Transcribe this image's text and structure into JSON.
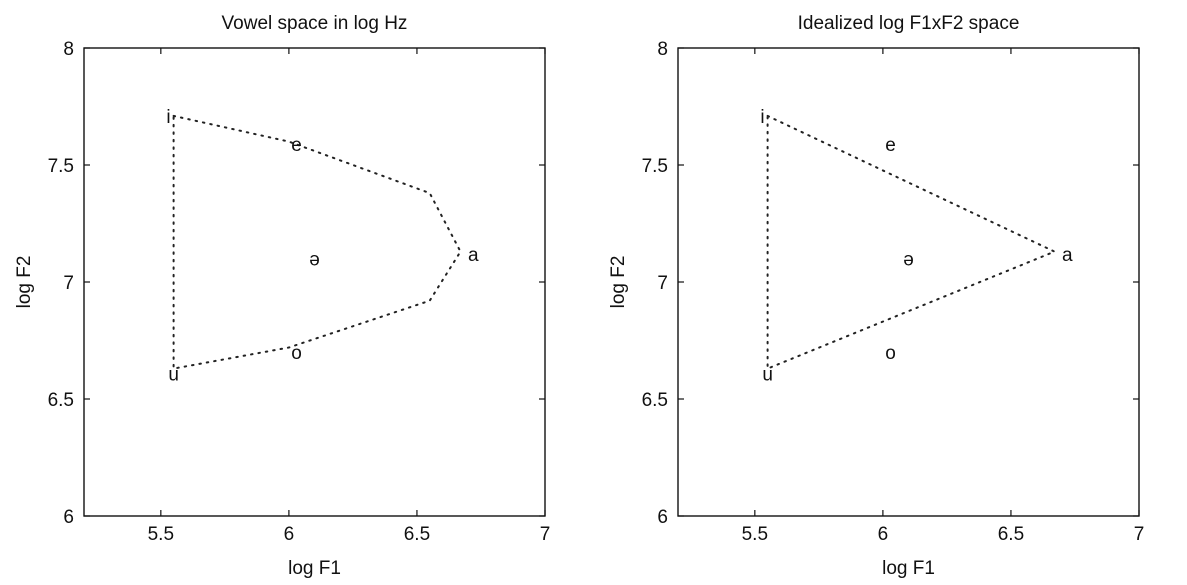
{
  "chart_data": [
    {
      "type": "scatter",
      "title": "Vowel space in log Hz",
      "xlabel": "log F1",
      "ylabel": "log F2",
      "xlim": [
        5.2,
        7
      ],
      "ylim": [
        6,
        8
      ],
      "xticks": [
        "5.5",
        "6",
        "6.5",
        "7"
      ],
      "yticks": [
        "6",
        "6.5",
        "7",
        "7.5",
        "8"
      ],
      "grid": false,
      "points": [
        {
          "label": "i",
          "x": 5.53,
          "y": 7.71
        },
        {
          "label": "e",
          "x": 6.03,
          "y": 7.59
        },
        {
          "label": "ə",
          "x": 6.1,
          "y": 7.1
        },
        {
          "label": "a",
          "x": 6.72,
          "y": 7.12
        },
        {
          "label": "o",
          "x": 6.03,
          "y": 6.7
        },
        {
          "label": "u",
          "x": 5.55,
          "y": 6.61
        }
      ],
      "boundary": {
        "style": "dotted",
        "path": [
          {
            "x": 5.55,
            "y": 7.71
          },
          {
            "x": 6.0,
            "y": 7.6
          },
          {
            "x": 6.55,
            "y": 7.38
          },
          {
            "x": 6.67,
            "y": 7.13
          },
          {
            "x": 6.55,
            "y": 6.92
          },
          {
            "x": 6.0,
            "y": 6.72
          },
          {
            "x": 5.55,
            "y": 6.63
          },
          {
            "x": 5.55,
            "y": 7.71
          }
        ]
      }
    },
    {
      "type": "scatter",
      "title": "Idealized log F1xF2 space",
      "xlabel": "log F1",
      "ylabel": "log F2",
      "xlim": [
        5.2,
        7
      ],
      "ylim": [
        6,
        8
      ],
      "xticks": [
        "5.5",
        "6",
        "6.5",
        "7"
      ],
      "yticks": [
        "6",
        "6.5",
        "7",
        "7.5",
        "8"
      ],
      "grid": false,
      "points": [
        {
          "label": "i",
          "x": 5.53,
          "y": 7.71
        },
        {
          "label": "e",
          "x": 6.03,
          "y": 7.59
        },
        {
          "label": "ə",
          "x": 6.1,
          "y": 7.1
        },
        {
          "label": "a",
          "x": 6.72,
          "y": 7.12
        },
        {
          "label": "o",
          "x": 6.03,
          "y": 6.7
        },
        {
          "label": "u",
          "x": 5.55,
          "y": 6.61
        }
      ],
      "boundary": {
        "style": "dotted",
        "path": [
          {
            "x": 5.55,
            "y": 7.71
          },
          {
            "x": 6.67,
            "y": 7.13
          },
          {
            "x": 5.55,
            "y": 6.63
          },
          {
            "x": 5.55,
            "y": 7.71
          }
        ]
      }
    }
  ]
}
